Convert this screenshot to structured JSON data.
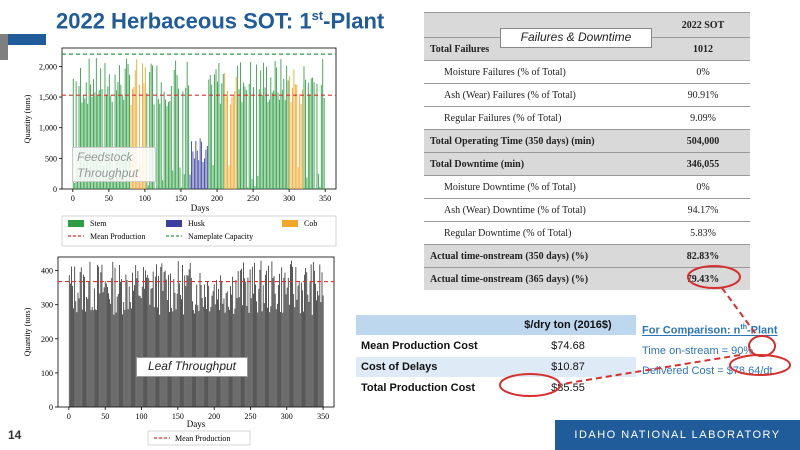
{
  "slide": {
    "title": "2022 Herbaceous SOT: 1",
    "title_sup": "st",
    "title_suffix": "-Plant",
    "page_number": "14",
    "footer": "IDAHO NATIONAL LABORATORY"
  },
  "chart_data": [
    {
      "type": "bar",
      "ylabel": "Quantity (tons)",
      "xlabel": "Days",
      "xlim": [
        -15,
        365
      ],
      "ylim": [
        0,
        2300
      ],
      "xticks": [
        0,
        50,
        100,
        150,
        200,
        250,
        300,
        350
      ],
      "yticks": [
        0,
        500,
        1000,
        1500,
        2000
      ],
      "ytick_labels": [
        "0",
        "500",
        "1,000",
        "1,500",
        "2,000"
      ],
      "segments": [
        {
          "series": "Stem",
          "start": 0,
          "end": 80
        },
        {
          "series": "Cob",
          "start": 80,
          "end": 102
        },
        {
          "series": "Stem",
          "start": 102,
          "end": 162
        },
        {
          "series": "Husk",
          "start": 162,
          "end": 188
        },
        {
          "series": "Stem",
          "start": 188,
          "end": 210
        },
        {
          "series": "Cob",
          "start": 210,
          "end": 228
        },
        {
          "series": "Stem",
          "start": 228,
          "end": 300
        },
        {
          "series": "Cob",
          "start": 300,
          "end": 320
        },
        {
          "series": "Stem",
          "start": 320,
          "end": 350
        }
      ],
      "series_colors": {
        "Stem": "#2e9e44",
        "Husk": "#3b3f9e",
        "Cob": "#f0a72c"
      },
      "reference_lines": [
        {
          "name": "Mean Production",
          "value": 1530,
          "color": "#e0302e"
        },
        {
          "name": "Nameplate Capacity",
          "value": 2200,
          "color": "#2e9e44"
        }
      ],
      "legend": [
        "Stem",
        "Husk",
        "Cob",
        "Mean Production",
        "Nameplate Capacity"
      ],
      "legend_position": "bottom",
      "callout": "Feedstock Throughput"
    },
    {
      "type": "bar",
      "ylabel": "Quantity (tons)",
      "xlabel": "Days",
      "xlim": [
        -15,
        365
      ],
      "ylim": [
        0,
        440
      ],
      "xticks": [
        0,
        50,
        100,
        150,
        200,
        250,
        300,
        350
      ],
      "yticks": [
        0,
        100,
        200,
        300,
        400
      ],
      "bar_color": "#1a1a1a",
      "range": [
        270,
        430
      ],
      "reference_lines": [
        {
          "name": "Mean Production",
          "value": 368,
          "color": "#e0302e"
        }
      ],
      "legend": [
        "Mean Production"
      ],
      "legend_position": "bottom",
      "callout": "Leaf Throughput"
    }
  ],
  "sot_table": {
    "caption": "Failures & Downtime",
    "header": "2022 SOT",
    "rows": [
      {
        "label": "Total Failures",
        "value": "1012",
        "bold": true
      },
      {
        "label": "Moisture Failures (% of Total)",
        "value": "0%",
        "bold": false
      },
      {
        "label": "Ash (Wear) Failures (% of Total)",
        "value": "90.91%",
        "bold": false
      },
      {
        "label": "Regular Failures (% of Total)",
        "value": "9.09%",
        "bold": false
      },
      {
        "label": "Total Operating Time (350 days) (min)",
        "value": "504,000",
        "bold": true
      },
      {
        "label": "Total Downtime (min)",
        "value": "346,055",
        "bold": true
      },
      {
        "label": "Moisture Downtime (% of Total)",
        "value": "0%",
        "bold": false
      },
      {
        "label": "Ash (Wear) Downtime (% of Total)",
        "value": "94.17%",
        "bold": false
      },
      {
        "label": "Regular Downtime (% of Total)",
        "value": "5.83%",
        "bold": false
      },
      {
        "label": "Actual time-onstream (350 days) (%)",
        "value": "82.83%",
        "bold": true
      },
      {
        "label": "Actual time-onstream (365 days) (%)",
        "value": "79.43%",
        "bold": true
      }
    ]
  },
  "cost_table": {
    "header": "$/dry ton (2016$)",
    "rows": [
      {
        "label": "Mean Production Cost",
        "value": "$74.68"
      },
      {
        "label": "Cost of Delays",
        "value": "$10.87"
      },
      {
        "label": "Total Production Cost",
        "value": "$85.55"
      }
    ]
  },
  "comparison": {
    "heading": "For Comparison: n",
    "heading_sup": "th",
    "heading_suffix": "-Plant",
    "time_label": "Time on-stream = ",
    "time_value": "90%",
    "cost_label": "Delivered Cost = ",
    "cost_value": "$78.64/dt"
  },
  "colors": {
    "brand_blue": "#1f5c99",
    "highlight_red": "#d62f2f",
    "table_gray": "#d9d9d9",
    "cost_blue": "#bdd7ee"
  }
}
